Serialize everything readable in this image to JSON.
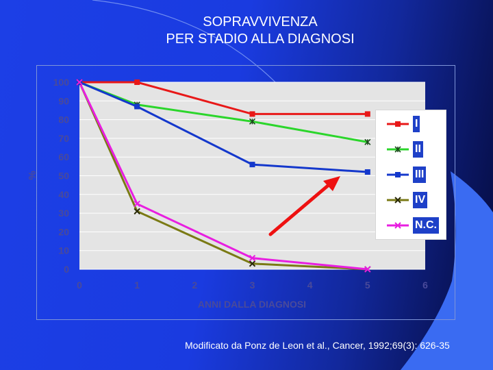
{
  "slide": {
    "title_line1": "SOPRAVVIVENZA",
    "title_line2": "PER STADIO ALLA DIAGNOSI",
    "source": "Modificato da Ponz de Leon et al., Cancer, 1992;69(3): 626-35"
  },
  "chart_data": {
    "type": "line",
    "title": "",
    "xlabel": "ANNI DALLA DIAGNOSI",
    "ylabel": "%",
    "xlim": [
      0,
      6
    ],
    "ylim": [
      0,
      100
    ],
    "x_ticks": [
      0,
      1,
      2,
      3,
      4,
      5,
      6
    ],
    "y_ticks": [
      0,
      10,
      20,
      30,
      40,
      50,
      60,
      70,
      80,
      90,
      100
    ],
    "grid": "horizontal",
    "legend_position": "right",
    "x": [
      0,
      1,
      3,
      5
    ],
    "series": [
      {
        "name": "I",
        "color": "#e81818",
        "marker": "square",
        "values": [
          100,
          100,
          83,
          83
        ]
      },
      {
        "name": "II",
        "color": "#2bd62b",
        "marker": "asterisk",
        "values": [
          100,
          88,
          79,
          68
        ]
      },
      {
        "name": "III",
        "color": "#1438cc",
        "marker": "square",
        "values": [
          100,
          87,
          56,
          52
        ]
      },
      {
        "name": "IV",
        "color": "#7a7a14",
        "marker": "x",
        "values": [
          100,
          31,
          3,
          0
        ]
      },
      {
        "name": "N.C.",
        "color": "#e81ee0",
        "marker": "x",
        "values": [
          100,
          35,
          6,
          0
        ]
      }
    ],
    "annotations": [
      {
        "type": "arrow",
        "color": "#ee1111",
        "description": "red arrow pointing up-right toward the legend"
      }
    ]
  },
  "colors": {
    "background": "#1c3fe6",
    "plot_area": "#e4e4e4",
    "arrow": "#ee1111"
  }
}
